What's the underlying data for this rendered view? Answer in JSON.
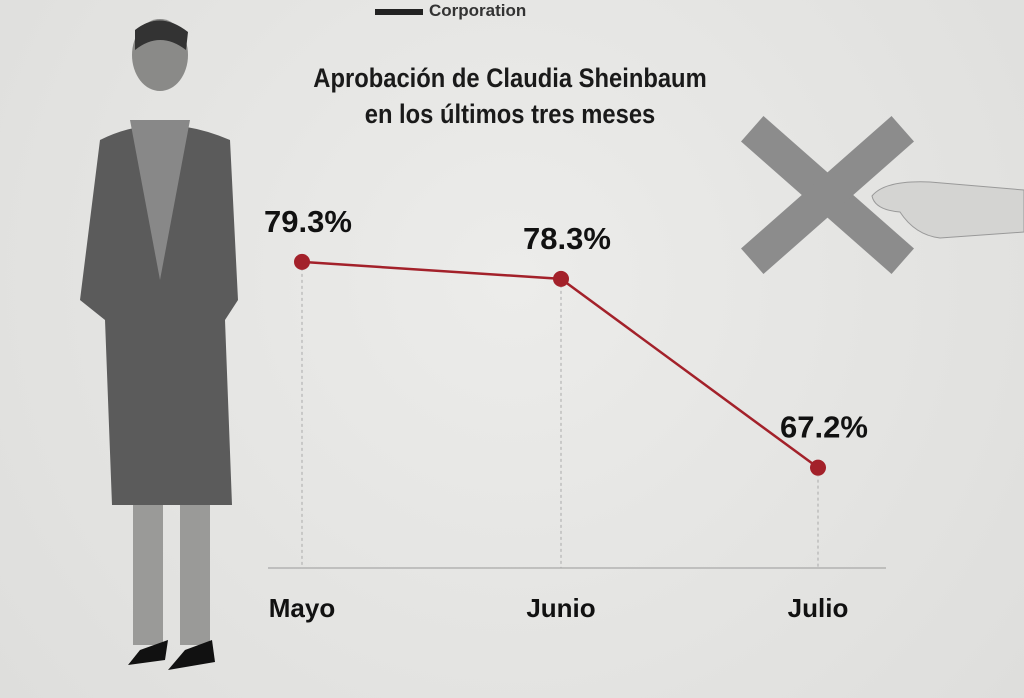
{
  "logo_text": "Corporation",
  "chart_data": {
    "type": "line",
    "title": "Aprobación de Claudia Sheinbaum en los últimos tres meses",
    "title_lines": [
      "Aprobación de Claudia Sheinbaum",
      "en los últimos tres meses"
    ],
    "categories": [
      "Mayo",
      "Junio",
      "Julio"
    ],
    "values": [
      79.3,
      78.3,
      67.2
    ],
    "labels": [
      "79.3%",
      "78.3%",
      "67.2%"
    ],
    "ylim": [
      61.3,
      94.7
    ],
    "grid": false,
    "line_color": "#a3212a"
  }
}
